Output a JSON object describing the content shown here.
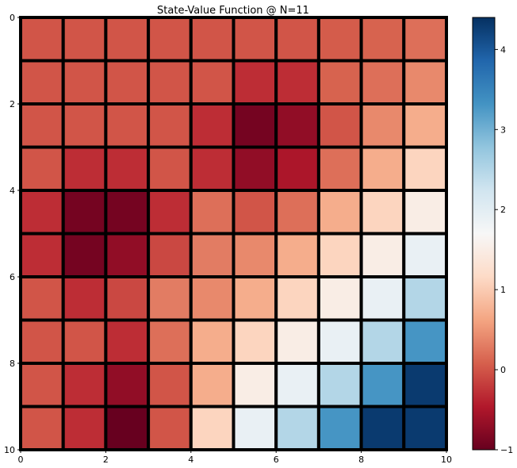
{
  "chart_data": {
    "type": "heatmap",
    "title": "State-Value Function @ N=11",
    "xlabel": "",
    "ylabel": "",
    "x_ticks": [
      "0",
      "2",
      "4",
      "6",
      "8",
      "10"
    ],
    "y_ticks": [
      "0",
      "2",
      "4",
      "6",
      "8",
      "10"
    ],
    "xlim": [
      0,
      10
    ],
    "ylim": [
      10,
      0
    ],
    "colormap": "RdBu",
    "vmin": -1,
    "vmax": 4.4,
    "colorbar_ticks": [
      "−1",
      "0",
      "1",
      "2",
      "3",
      "4"
    ],
    "colorbar_tick_values": [
      -1,
      0,
      1,
      2,
      3,
      4
    ],
    "grid": false,
    "cell_border_color": "#000000",
    "values": [
      [
        0.0,
        0.0,
        0.0,
        0.0,
        0.0,
        0.0,
        0.0,
        0.05,
        0.1,
        0.2
      ],
      [
        0.0,
        0.0,
        0.0,
        0.0,
        0.0,
        -0.3,
        -0.3,
        0.1,
        0.2,
        0.4
      ],
      [
        0.0,
        0.0,
        0.0,
        0.0,
        -0.3,
        -0.9,
        -0.7,
        0.0,
        0.4,
        0.7
      ],
      [
        0.0,
        -0.3,
        -0.3,
        0.0,
        -0.3,
        -0.7,
        -0.5,
        0.2,
        0.7,
        1.1
      ],
      [
        -0.3,
        -0.9,
        -0.9,
        -0.3,
        0.2,
        0.0,
        0.2,
        0.7,
        1.1,
        1.5
      ],
      [
        -0.3,
        -0.9,
        -0.7,
        -0.1,
        0.3,
        0.4,
        0.7,
        1.1,
        1.5,
        1.9
      ],
      [
        0.0,
        -0.3,
        -0.1,
        0.3,
        0.4,
        0.7,
        1.1,
        1.5,
        1.9,
        2.5
      ],
      [
        0.0,
        0.0,
        -0.3,
        0.2,
        0.7,
        1.1,
        1.5,
        1.9,
        2.5,
        3.3
      ],
      [
        0.0,
        -0.3,
        -0.7,
        0.0,
        0.7,
        1.5,
        1.9,
        2.5,
        3.3,
        4.3
      ],
      [
        0.0,
        -0.3,
        -1.0,
        0.0,
        1.1,
        1.9,
        2.5,
        3.3,
        4.3,
        4.3
      ]
    ]
  }
}
